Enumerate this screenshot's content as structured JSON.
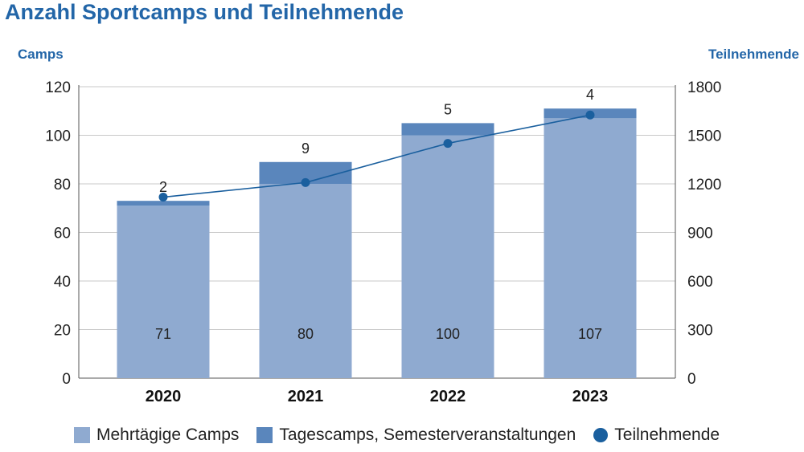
{
  "chart_data": {
    "type": "bar",
    "title": "Anzahl Sportcamps und Teilnehmende",
    "ylabel_left": "Camps",
    "ylabel_right": "Teilnehmende",
    "categories": [
      "2020",
      "2021",
      "2022",
      "2023"
    ],
    "ylim_left": [
      0,
      120
    ],
    "yticks_left": [
      0,
      20,
      40,
      60,
      80,
      100,
      120
    ],
    "ylim_right": [
      0,
      1800
    ],
    "yticks_right": [
      0,
      300,
      600,
      900,
      1200,
      1500,
      1800
    ],
    "stacked": true,
    "grid": true,
    "legend_position": "bottom",
    "series": [
      {
        "name": "Mehrtägige Camps",
        "type": "bar",
        "axis": "left",
        "color": "#8faad0",
        "values": [
          71,
          80,
          100,
          107
        ]
      },
      {
        "name": "Tagescamps, Semesterveranstaltungen",
        "type": "bar",
        "axis": "left",
        "color": "#5a86bc",
        "values": [
          2,
          9,
          5,
          4
        ]
      },
      {
        "name": "Teilnehmende",
        "type": "line",
        "axis": "right",
        "color": "#1a5f9e",
        "values": [
          1118,
          1208,
          1450,
          1625
        ]
      }
    ]
  }
}
